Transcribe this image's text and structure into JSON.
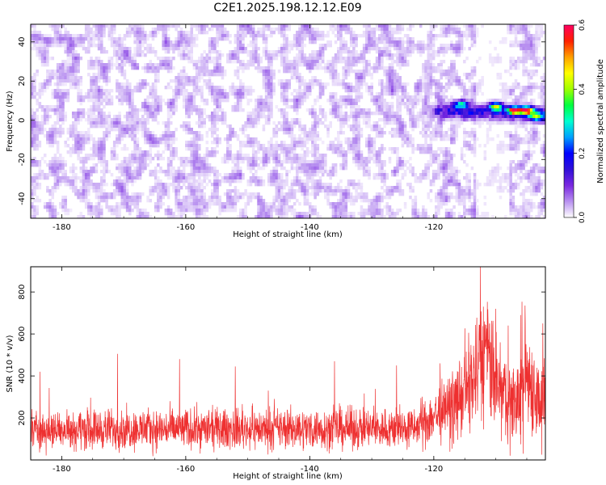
{
  "figure_title": "C2E1.2025.198.12.12.E09",
  "chart_data": [
    {
      "type": "heatmap",
      "title": "C2E1.2025.198.12.12.E09",
      "xlabel": "Height of straight line (km)",
      "ylabel": "Frequency (Hz)",
      "xlim": [
        -185,
        -102
      ],
      "ylim": [
        -50,
        49
      ],
      "x_ticks": [
        -180,
        -160,
        -140,
        -120
      ],
      "y_ticks": [
        -40,
        -20,
        0,
        20,
        40
      ],
      "x_tick_labels": [
        "-180",
        "-160",
        "-140",
        "-120"
      ],
      "y_tick_labels": [
        "-40",
        "-20",
        "0",
        "20",
        "40"
      ],
      "colorbar": {
        "label": "Normalized spectral amplitude",
        "range": [
          0.0,
          0.6
        ],
        "ticks": [
          0.0,
          0.2,
          0.4,
          0.6
        ],
        "tick_labels": [
          "0.0",
          "0.2",
          "0.4",
          "0.6"
        ],
        "colormap": [
          "#ffffff",
          "#b890f0",
          "#7a28e0",
          "#3010d8",
          "#0000ff",
          "#00a0ff",
          "#00ffd0",
          "#00ff40",
          "#a0ff00",
          "#ffff00",
          "#ffa000",
          "#ff2000",
          "#ff0060"
        ]
      },
      "noise_level": 0.06,
      "signal_band": {
        "x_range": [
          -122,
          -102
        ],
        "frequency_at_start": 5,
        "frequency_at_end": 3,
        "peak_amplitude": 0.55,
        "peaks": [
          {
            "x": -115.5,
            "y": 8,
            "amp": 0.3
          },
          {
            "x": -110,
            "y": 7,
            "amp": 0.42
          },
          {
            "x": -107,
            "y": 5,
            "amp": 0.55
          },
          {
            "x": -105,
            "y": 5,
            "amp": 0.5
          },
          {
            "x": -103.5,
            "y": 2,
            "amp": 0.32
          }
        ]
      },
      "quiet_band_x": [
        -113,
        -108
      ]
    },
    {
      "type": "line",
      "xlabel": "Height of straight line (km)",
      "ylabel": "SNR (10 * v/v)",
      "xlim": [
        -185,
        -102
      ],
      "ylim": [
        0,
        920
      ],
      "x_ticks": [
        -180,
        -160,
        -140,
        -120
      ],
      "y_ticks": [
        200,
        400,
        600,
        800
      ],
      "x_tick_labels": [
        "-180",
        "-160",
        "-140",
        "-120"
      ],
      "y_tick_labels": [
        "200",
        "400",
        "600",
        "800"
      ],
      "line_color": "#ee3030",
      "baseline": 145,
      "noise_amplitude": 95,
      "occasional_spikes": [
        {
          "x": -183.5,
          "y": 420
        },
        {
          "x": -171,
          "y": 505
        },
        {
          "x": -161,
          "y": 480
        },
        {
          "x": -152,
          "y": 445
        },
        {
          "x": -136,
          "y": 470
        },
        {
          "x": -126,
          "y": 450
        },
        {
          "x": -119,
          "y": 460
        }
      ],
      "envelope": [
        {
          "x": -185,
          "y": 145
        },
        {
          "x": -123,
          "y": 150
        },
        {
          "x": -120,
          "y": 210
        },
        {
          "x": -117,
          "y": 250
        },
        {
          "x": -115,
          "y": 320
        },
        {
          "x": -113,
          "y": 420
        },
        {
          "x": -111.5,
          "y": 520
        },
        {
          "x": -110.5,
          "y": 380
        },
        {
          "x": -109,
          "y": 310
        },
        {
          "x": -107,
          "y": 270
        },
        {
          "x": -106,
          "y": 300
        },
        {
          "x": -105,
          "y": 420
        },
        {
          "x": -104,
          "y": 340
        },
        {
          "x": -103,
          "y": 280
        },
        {
          "x": -102,
          "y": 300
        }
      ],
      "peaks": [
        {
          "x": -112.5,
          "y": 918
        },
        {
          "x": -112.0,
          "y": 730
        },
        {
          "x": -111.0,
          "y": 650
        },
        {
          "x": -110.0,
          "y": 720
        },
        {
          "x": -109.3,
          "y": 560
        },
        {
          "x": -108.0,
          "y": 640
        },
        {
          "x": -106.0,
          "y": 690
        },
        {
          "x": -105.3,
          "y": 735
        },
        {
          "x": -104.0,
          "y": 450
        },
        {
          "x": -102.4,
          "y": 650
        }
      ],
      "deep_dips": [
        {
          "x": -107.7,
          "y": 20
        },
        {
          "x": -105.6,
          "y": 30
        },
        {
          "x": -102.6,
          "y": 25
        }
      ]
    }
  ]
}
